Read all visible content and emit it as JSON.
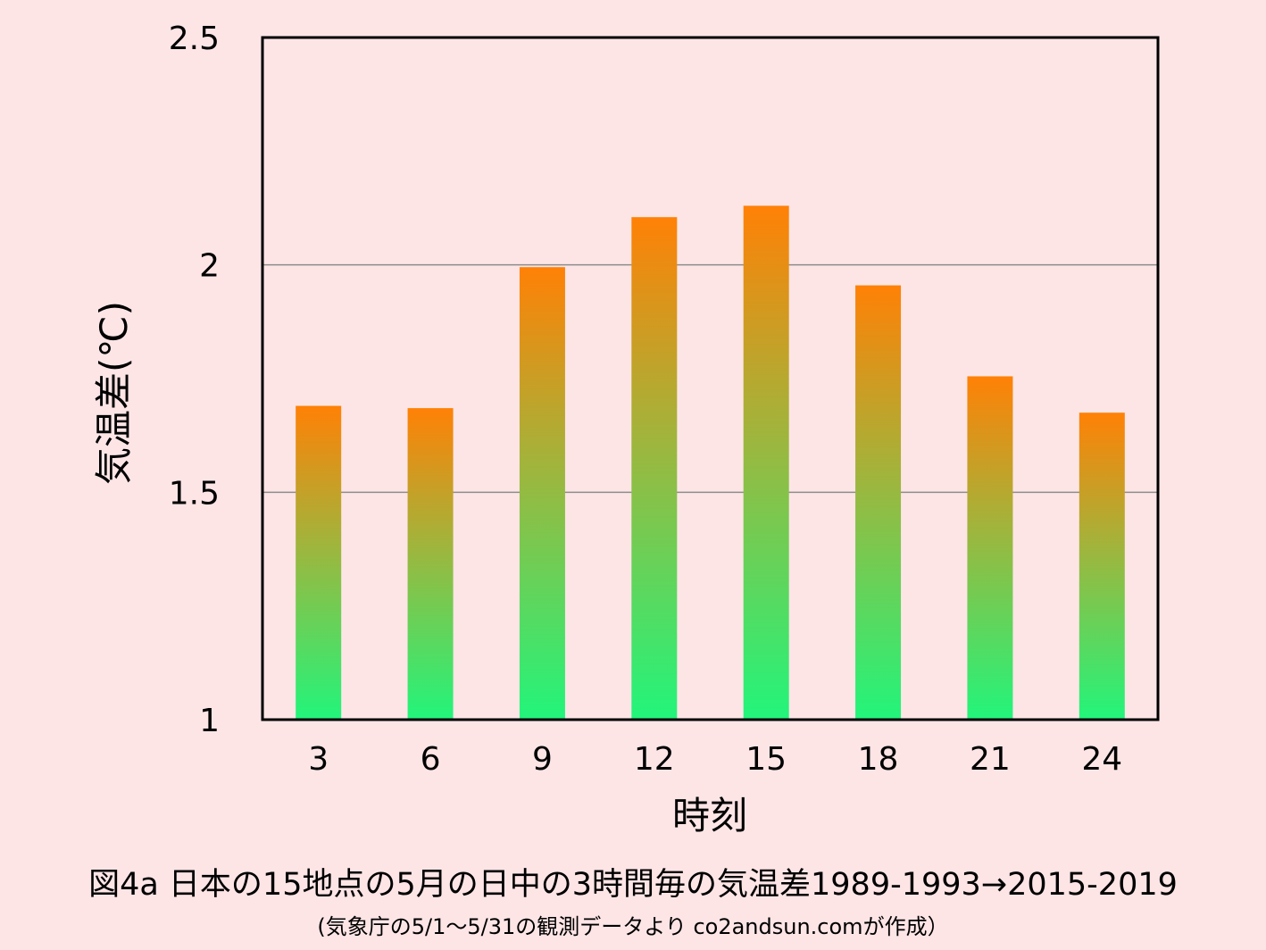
{
  "chart_data": {
    "type": "bar",
    "categories": [
      "3",
      "6",
      "9",
      "12",
      "15",
      "18",
      "21",
      "24"
    ],
    "values": [
      1.69,
      1.685,
      1.995,
      2.105,
      2.13,
      1.955,
      1.755,
      1.675
    ],
    "xlabel": "時刻",
    "ylabel": "気温差(℃)",
    "ylim": [
      1,
      2.5
    ],
    "yticks": [
      "1",
      "1.5",
      "2",
      "2.5"
    ],
    "ytick_values": [
      1,
      1.5,
      2,
      2.5
    ],
    "gridlines": [
      1.5,
      2
    ],
    "bar_gradient": {
      "top": "#ff8106",
      "middle": "#a5b23a",
      "bottom": "#22f57b"
    },
    "grid": true,
    "legend": "none"
  },
  "caption": {
    "title": "図4a 日本の15地点の5月の日中の3時間毎の気温差1989-1993→2015-2019",
    "source": "(気象庁の5/1～5/31の観測データより co2andsun.comが作成）"
  },
  "colors": {
    "background": "#fde5e6",
    "plot_background": "#fde5e6",
    "axis": "#000000",
    "grid": "#8c8c8c"
  }
}
